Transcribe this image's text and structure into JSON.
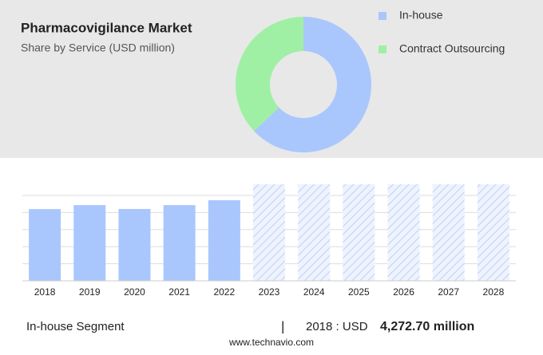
{
  "chart_data": [
    {
      "type": "pie",
      "title": "Pharmacovigilance Market",
      "subtitle": "Share by Service (USD million)",
      "categories": [
        "In-house",
        "Contract Outsourcing"
      ],
      "values": [
        63,
        37
      ],
      "colors": [
        "#a9c7fd",
        "#9ff0a5"
      ],
      "donut": true
    },
    {
      "type": "bar",
      "categories": [
        "2018",
        "2019",
        "2020",
        "2021",
        "2022",
        "2023",
        "2024",
        "2025",
        "2026",
        "2027",
        "2028"
      ],
      "values": [
        4272.7,
        4510,
        4280,
        4510,
        4800,
        null,
        null,
        null,
        null,
        null,
        null
      ],
      "color": "#a9c7fd",
      "ylim": [
        0,
        5750
      ],
      "grid": true
    }
  ],
  "footer": {
    "segment": "In-house Segment",
    "separator": "|",
    "year_label": "2018 : USD",
    "value": "4,272.70 million",
    "source": "www.technavio.com"
  }
}
